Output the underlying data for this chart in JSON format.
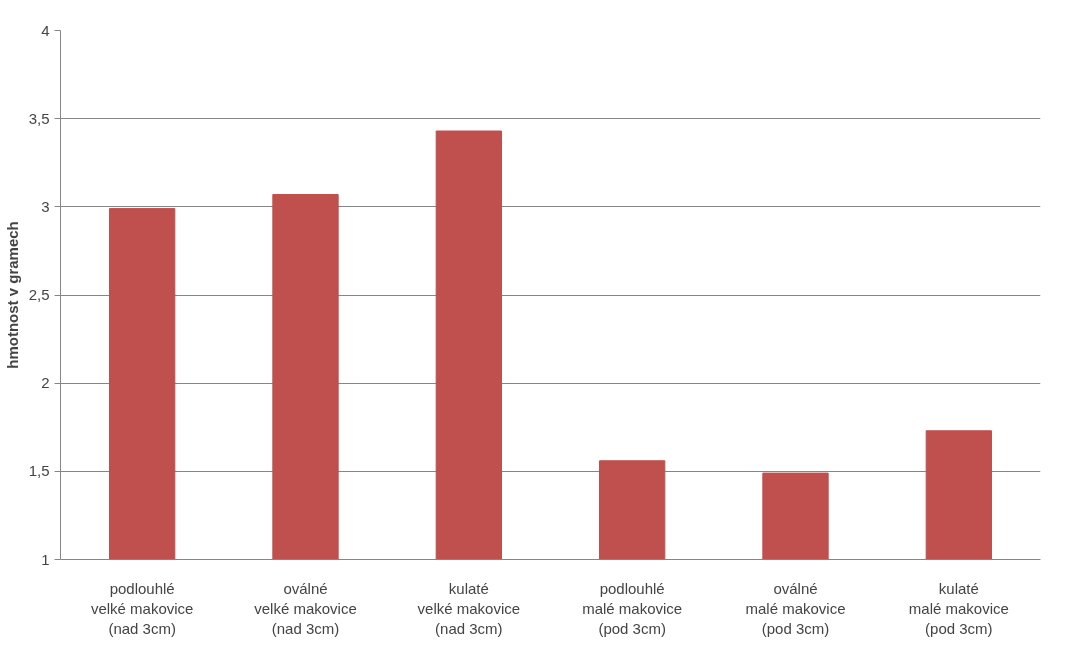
{
  "chart_data": {
    "type": "bar",
    "ylabel": "hmotnost v gramech",
    "categories": [
      "podlouhlé\nvelké makovice\n(nad 3cm)",
      "oválné\nvelké makovice\n(nad 3cm)",
      "kulaté\nvelké makovice\n(nad 3cm)",
      "podlouhlé\nmalé makovice\n(pod 3cm)",
      "oválné\nmalé makovice\n(pod 3cm)",
      "kulaté\nmalé makovice\n(pod 3cm)"
    ],
    "values": [
      2.99,
      3.07,
      3.43,
      1.56,
      1.49,
      1.73
    ],
    "color": "#c0504d",
    "ylim": [
      1,
      4
    ],
    "yticks": [
      1,
      {
        "value": 1.5,
        "label": "1,5"
      },
      2,
      {
        "value": 2.5,
        "label": "2,5"
      },
      3,
      {
        "value": 3.5,
        "label": "3,5"
      },
      4
    ],
    "grid": "y"
  }
}
